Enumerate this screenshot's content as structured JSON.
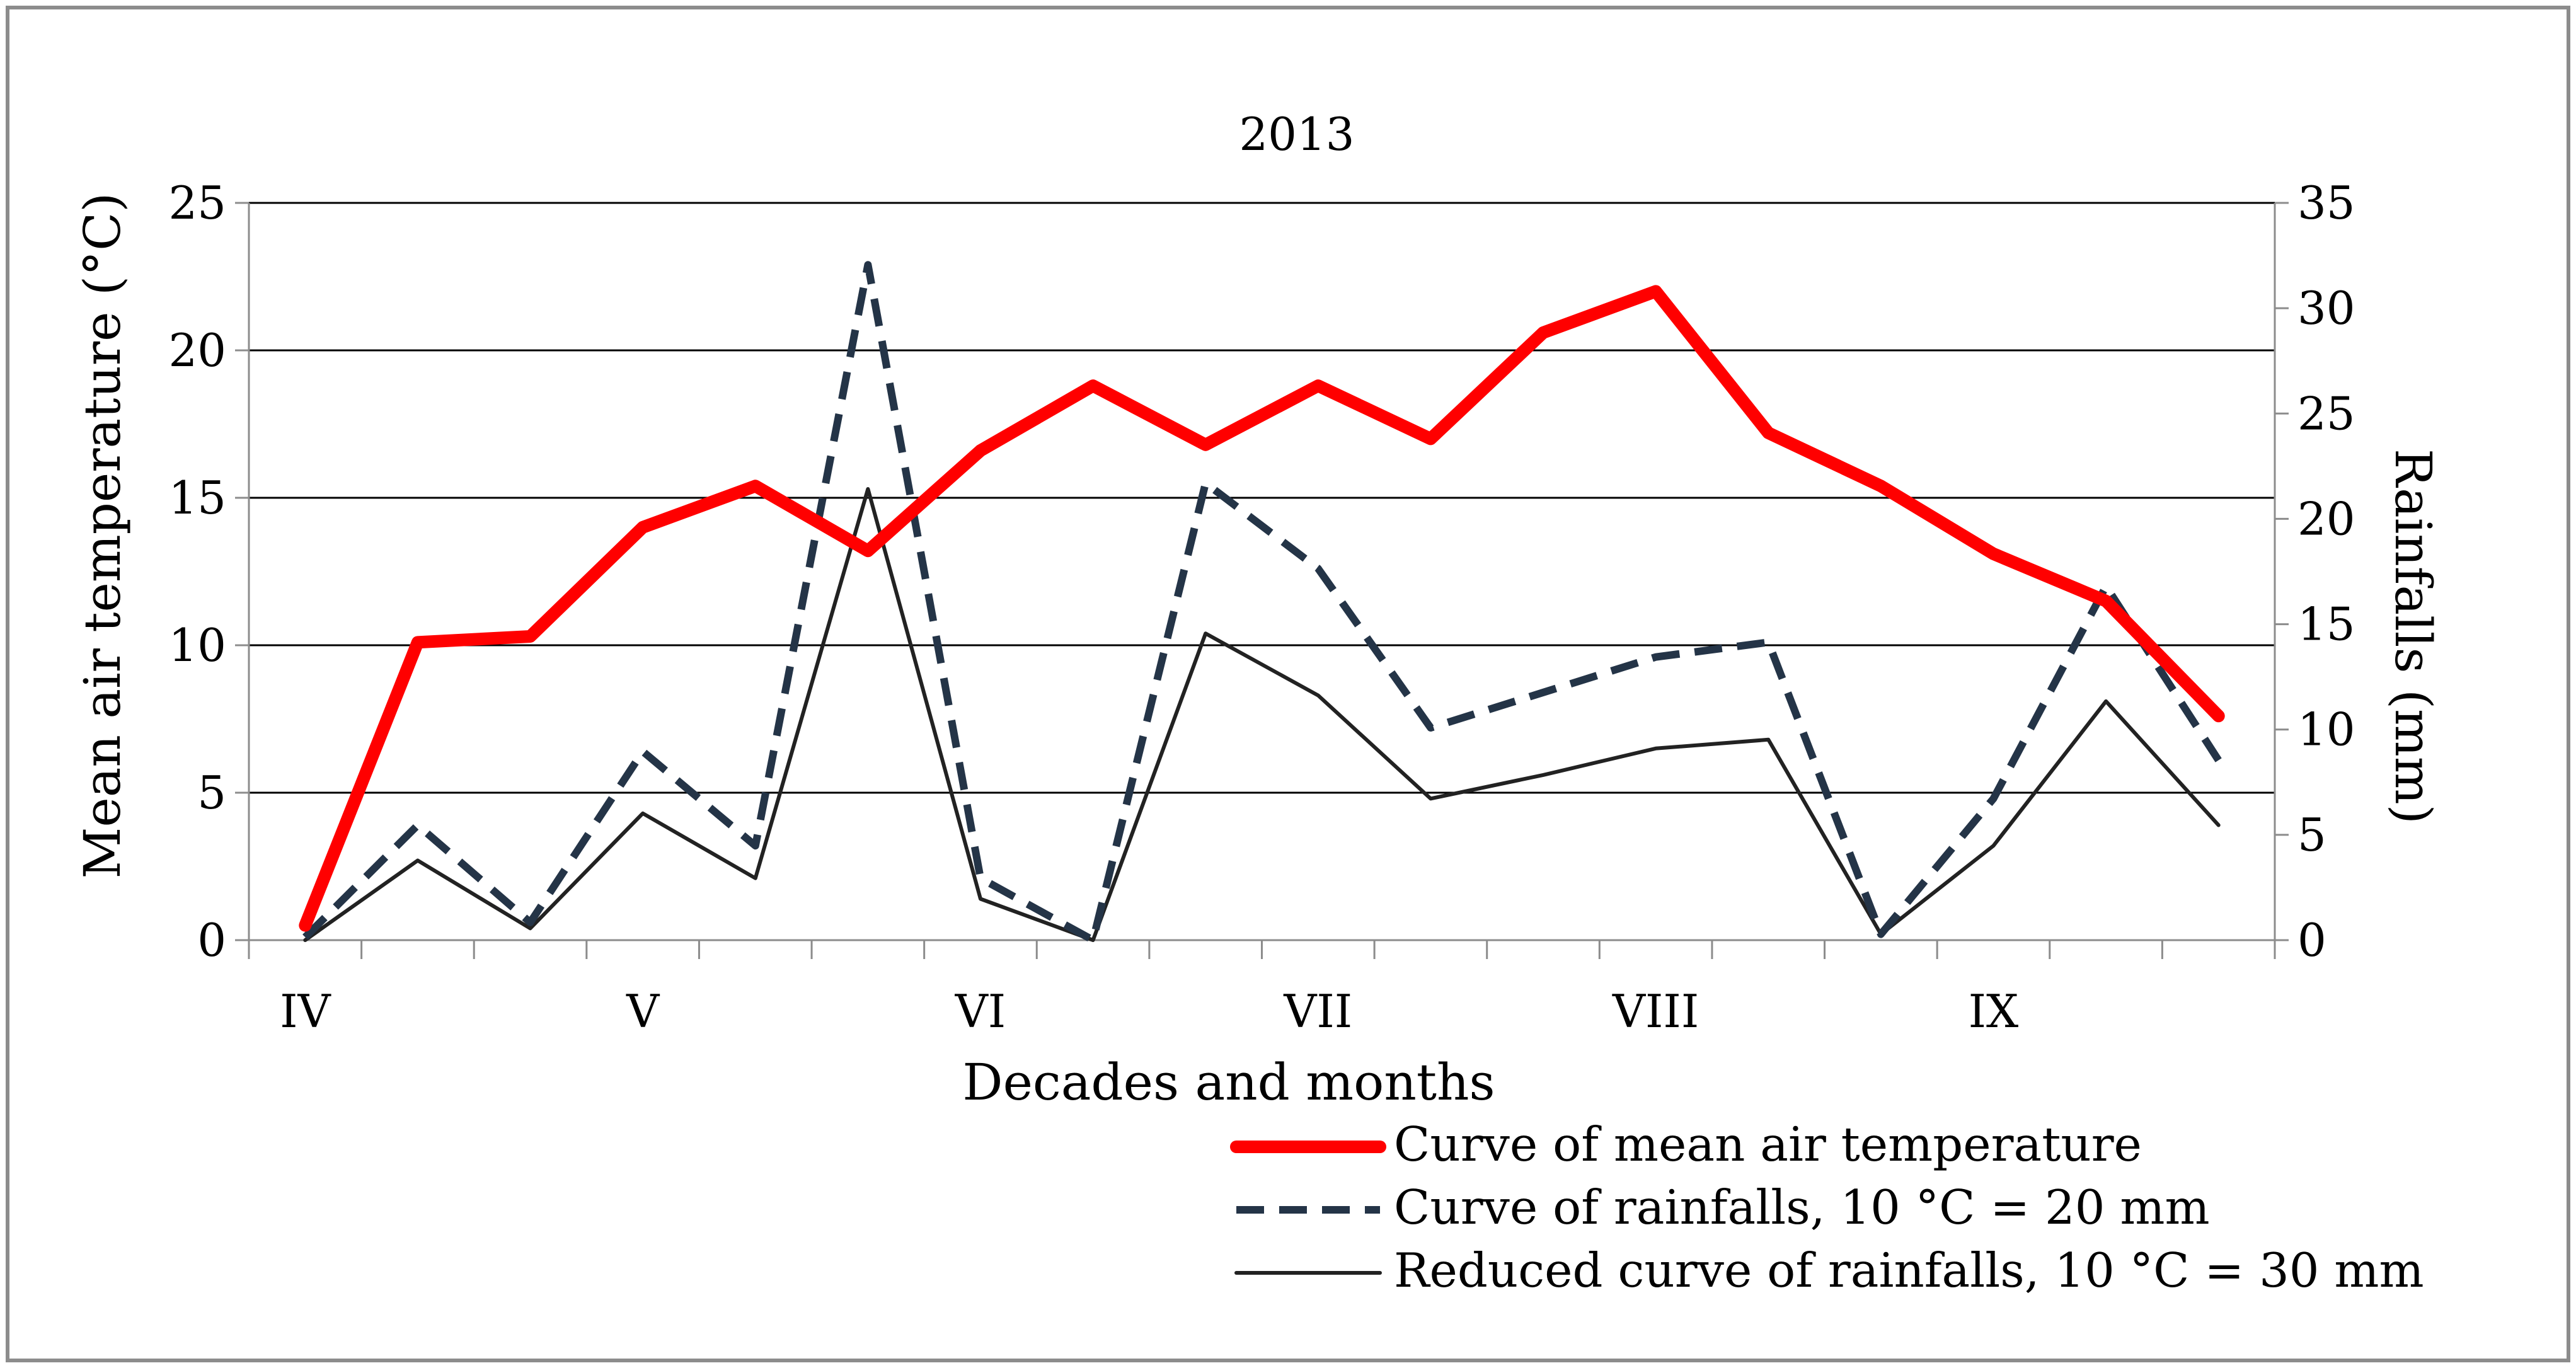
{
  "chart_data": {
    "type": "line",
    "title": "2013",
    "xlabel": "Decades and months",
    "ylabel_left": "Mean air temperature (°C)",
    "ylabel_right": "Rainfalls (mm)",
    "ylim_left": [
      0,
      25
    ],
    "yticks_left": [
      "0",
      "5",
      "10",
      "15",
      "20",
      "25"
    ],
    "ylim_right": [
      0,
      35
    ],
    "yticks_right": [
      "0",
      "5",
      "10",
      "15",
      "20",
      "25",
      "30",
      "35"
    ],
    "month_labels": [
      "IV",
      "V",
      "VI",
      "VII",
      "VIII",
      "IX"
    ],
    "decades": 18,
    "grid": "horizontal",
    "legend_position": "bottom-right",
    "series": [
      {
        "name": "Curve of mean air temperature",
        "axis": "left",
        "color": "#ff0000",
        "style": "solid-thick",
        "values": [
          0.5,
          10.1,
          10.3,
          14.0,
          15.4,
          13.2,
          16.6,
          18.8,
          16.8,
          18.8,
          17.0,
          20.6,
          22.0,
          17.2,
          15.4,
          13.1,
          11.5,
          7.6
        ]
      },
      {
        "name": "Curve of rainfalls, 10 °C = 20 mm",
        "axis": "left",
        "color": "#243447",
        "style": "dashed",
        "values": [
          0.1,
          3.9,
          0.6,
          6.4,
          3.2,
          22.9,
          2.1,
          0.0,
          15.5,
          12.6,
          7.2,
          8.4,
          9.6,
          10.1,
          0.2,
          4.8,
          12.0,
          6.1
        ]
      },
      {
        "name": "Reduced curve of rainfalls, 10 °C  = 30 mm",
        "axis": "left",
        "color": "#222222",
        "style": "solid-thin",
        "values": [
          0.0,
          2.7,
          0.4,
          4.3,
          2.1,
          15.3,
          1.4,
          0.0,
          10.4,
          8.3,
          4.8,
          5.6,
          6.5,
          6.8,
          0.2,
          3.2,
          8.1,
          3.9
        ]
      }
    ]
  }
}
